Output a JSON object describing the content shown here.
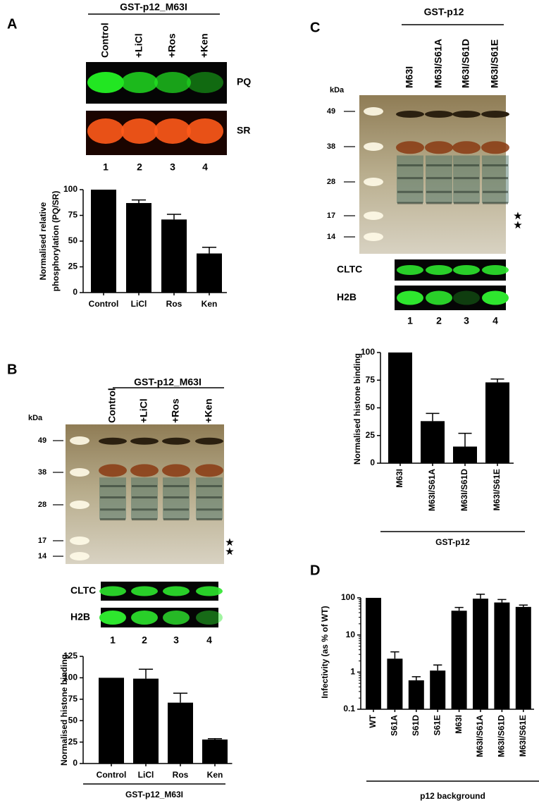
{
  "panels": {
    "A": {
      "label": "A",
      "header": "GST-p12_M63I",
      "lanes": [
        "Control",
        "+LiCl",
        "+Ros",
        "+Ken"
      ],
      "blots": [
        "PQ",
        "SR"
      ],
      "lane_numbers": [
        "1",
        "2",
        "3",
        "4"
      ]
    },
    "B": {
      "label": "B",
      "header": "GST-p12_M63I",
      "lanes": [
        "Control",
        "+LiCl",
        "+Ros",
        "+Ken"
      ],
      "kda_label": "kDa",
      "markers": [
        49,
        38,
        28,
        17,
        14
      ],
      "stars": [
        "★",
        "★"
      ],
      "blots": [
        "CLTC",
        "H2B"
      ],
      "lane_numbers": [
        "1",
        "2",
        "3",
        "4"
      ]
    },
    "C": {
      "label": "C",
      "header": "GST-p12",
      "lanes": [
        "M63I",
        "M63I/S61A",
        "M63I/S61D",
        "M63I/S61E"
      ],
      "kda_label": "kDa",
      "markers": [
        49,
        38,
        28,
        17,
        14
      ],
      "stars": [
        "★",
        "★"
      ],
      "blots": [
        "CLTC",
        "H2B"
      ],
      "lane_numbers": [
        "1",
        "2",
        "3",
        "4"
      ]
    },
    "D": {
      "label": "D"
    }
  },
  "chart_data": [
    {
      "type": "bar",
      "categories": [
        "Control",
        "LiCl",
        "Ros",
        "Ken"
      ],
      "values": [
        100,
        87,
        71,
        38
      ],
      "errors": [
        0,
        3,
        5,
        6
      ],
      "color": "#000000",
      "ylim": [
        0,
        100
      ],
      "yticks": [
        0,
        25,
        50,
        75,
        100
      ],
      "ylabel": [
        "Normalised relative",
        "phosphorylation (PQ/SR)"
      ]
    },
    {
      "type": "bar",
      "categories": [
        "Control",
        "LiCl",
        "Ros",
        "Ken"
      ],
      "values": [
        100,
        99,
        71,
        28
      ],
      "errors": [
        0,
        11,
        11,
        1
      ],
      "color": "#000000",
      "ylim": [
        0,
        125
      ],
      "yticks": [
        0,
        25,
        50,
        75,
        100,
        125
      ],
      "ylabel": "Normalised histone binding",
      "xlabel": "GST-p12_M63I"
    },
    {
      "type": "bar",
      "categories": [
        "M63I",
        "M63I/S61A",
        "M63I/S61D",
        "M63I/S61E"
      ],
      "values": [
        100,
        38,
        15,
        73
      ],
      "errors": [
        0,
        7,
        12,
        3
      ],
      "color": "#000000",
      "ylim": [
        0,
        100
      ],
      "yticks": [
        0,
        25,
        50,
        75,
        100
      ],
      "ylabel": "Normalised histone binding",
      "xlabel": "GST-p12"
    },
    {
      "type": "bar",
      "log_scale": true,
      "categories": [
        "WT",
        "S61A",
        "S61D",
        "S61E",
        "M63I",
        "M63I/S61A",
        "M63I/S61D",
        "M63I/S61E"
      ],
      "values": [
        100,
        2.3,
        0.6,
        1.1,
        45,
        95,
        75,
        57
      ],
      "errors": [
        0,
        1.2,
        0.15,
        0.45,
        10,
        30,
        15,
        7
      ],
      "color": "#000000",
      "ylim": [
        0.1,
        100
      ],
      "yticks": [
        0.1,
        1,
        10,
        100
      ],
      "ylabel": "Infectivity (as % of WT)",
      "xlabel": "p12 background"
    }
  ]
}
